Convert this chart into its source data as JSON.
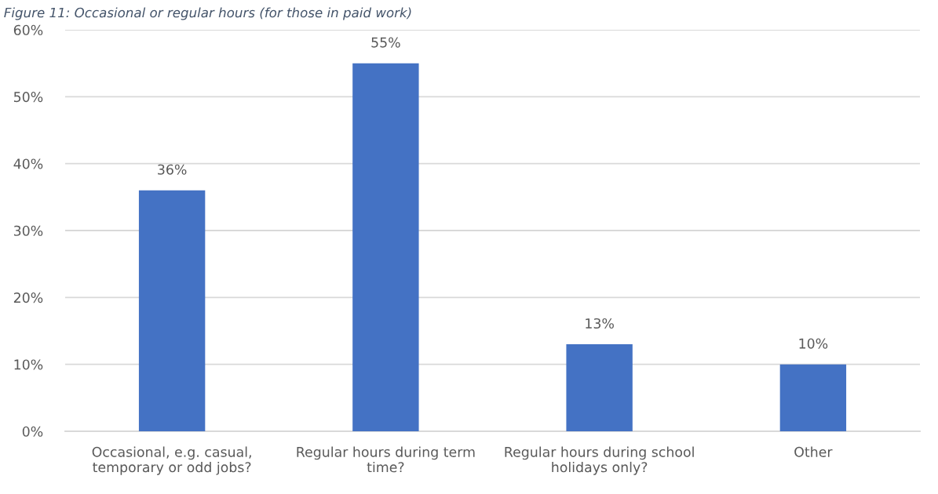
{
  "chart_data": {
    "type": "bar",
    "title": "Figure 11: Occasional or regular hours (for those in paid work)",
    "categories": [
      "Occasional, e.g. casual,\ntemporary or odd jobs?",
      "Regular hours during term\ntime?",
      "Regular hours during school\nholidays only?",
      "Other"
    ],
    "values": [
      36,
      55,
      13,
      10
    ],
    "color": "#4472c4",
    "value_labels": [
      "36%",
      "55%",
      "13%",
      "10%"
    ],
    "ylim": [
      0,
      60
    ],
    "yticks": [
      {
        "value": 0,
        "label": "0%"
      },
      {
        "value": 10,
        "label": "10%"
      },
      {
        "value": 20,
        "label": "20%"
      },
      {
        "value": 30,
        "label": "30%"
      },
      {
        "value": 40,
        "label": "40%"
      },
      {
        "value": 50,
        "label": "50%"
      },
      {
        "value": 60,
        "label": "60%"
      }
    ],
    "grid": "y",
    "legend": false
  }
}
